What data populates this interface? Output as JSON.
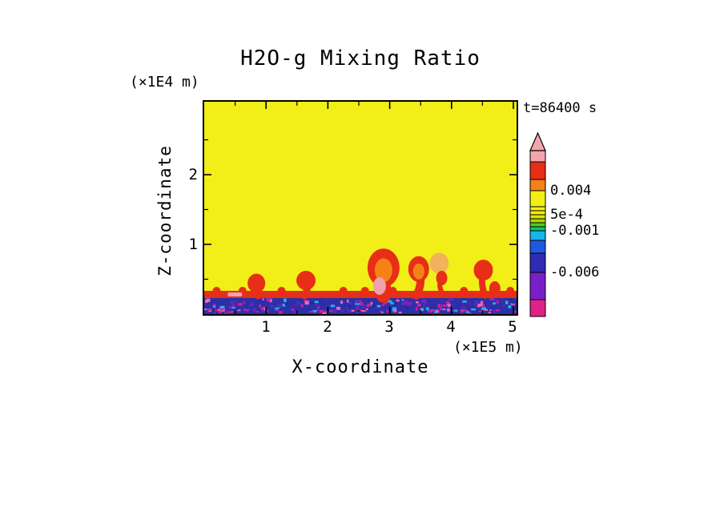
{
  "title": "H2O-g Mixing Ratio",
  "annotations": {
    "time": "t=86400 s",
    "y_units": "(×1E4 m)",
    "x_units": "(×1E5 m)"
  },
  "axes": {
    "x_label": "X-coordinate",
    "y_label": "Z-coordinate",
    "x_ticks": [
      "1",
      "2",
      "3",
      "4",
      "5"
    ],
    "y_ticks": [
      "1",
      "2"
    ]
  },
  "colorbar": {
    "labels": [
      "0.004",
      "5e-4",
      "-0.001",
      "-0.006"
    ]
  },
  "chart_data": {
    "type": "heatmap",
    "title": "H2O-g Mixing Ratio",
    "xlabel": "X-coordinate",
    "ylabel": "Z-coordinate",
    "x_units": "×1E5 m",
    "y_units": "×1E4 m",
    "time_annotation": "t=86400 s",
    "xlim": [
      0,
      5.05
    ],
    "ylim": [
      0,
      3.05
    ],
    "x_ticks": [
      1,
      2,
      3,
      4,
      5
    ],
    "y_ticks": [
      1,
      2
    ],
    "grid": false,
    "legend_position": "right-vertical-colorbar-with-arrow-top",
    "colorbar": {
      "orientation": "vertical",
      "tick_labels": [
        {
          "text": "0.004",
          "value": 0.004
        },
        {
          "text": "5e-4",
          "value": 0.0005
        },
        {
          "text": "-0.001",
          "value": -0.001
        },
        {
          "text": "-0.006",
          "value": -0.006
        }
      ],
      "colors_bottom_to_top": [
        "#e0218a",
        "#7a1fc8",
        "#2f2bb2",
        "#1d5ae0",
        "#18b4ec",
        "#00c878",
        "#58c81e",
        "#a8d800",
        "#dfe400",
        "#f0ee10",
        "#f2ef12",
        "#f2ee18",
        "#f58216",
        "#e62f16",
        "#f2a5ad"
      ]
    },
    "field": {
      "background_meaning": "mixing ratio in yellow band (~0.001 to 0.004) over most of domain",
      "surface_layer": {
        "z_top": 0.26,
        "meaning": "negative values (-0.001 to -0.006): dark blue/purple with magenta mottling"
      },
      "interface_band": {
        "z": 0.28,
        "meaning": "thin red layer (~0.004) capping the surface layer"
      },
      "plumes": [
        {
          "x": 0.87,
          "top_z": 0.58,
          "stem_w": 9,
          "head_rx": 11,
          "head_ry": 12,
          "lean": -2
        },
        {
          "x": 1.62,
          "top_z": 0.62,
          "stem_w": 9,
          "head_rx": 12,
          "head_ry": 12,
          "lean": 2
        },
        {
          "x": 2.9,
          "top_z": 0.94,
          "stem_w": 18,
          "head_rx": 20,
          "head_ry": 24,
          "lean": 0,
          "core": "core_orange",
          "base_core": true
        },
        {
          "x": 3.43,
          "top_z": 0.83,
          "stem_w": 10,
          "head_rx": 13,
          "head_ry": 16,
          "lean": 3,
          "core": "core_orange"
        },
        {
          "x": 3.8,
          "top_z": 0.88,
          "stem_w": 0,
          "head_rx": 12,
          "head_ry": 13,
          "lean": 0,
          "head_color": "core_light"
        },
        {
          "x": 3.88,
          "top_z": 0.62,
          "stem_w": 6,
          "head_rx": 7,
          "head_ry": 9,
          "lean": -3
        },
        {
          "x": 4.54,
          "top_z": 0.78,
          "stem_w": 8,
          "head_rx": 12,
          "head_ry": 13,
          "lean": -2
        }
      ],
      "bumps": [
        0.2,
        0.62,
        1.25,
        2.25,
        2.6,
        3.05,
        4.2,
        4.95
      ],
      "base_blobs": [
        {
          "x": 4.7,
          "rx": 7,
          "ry": 9
        }
      ],
      "pink_patches": [
        {
          "x": 0.38,
          "w": 18
        }
      ]
    },
    "colors": {
      "background": "#f2ee18",
      "plume": "#e62f16",
      "core_orange": "#f58216",
      "core_light": "#f0b35a",
      "core_pink": "#f2a0b0",
      "surface_base": "#2c2fa8",
      "speckles": [
        "#cc1f9c",
        "#7a22b8",
        "#4433c0",
        "#232a9e",
        "#22b4e8",
        "#ee66b8",
        "#5b1fa8"
      ]
    }
  }
}
